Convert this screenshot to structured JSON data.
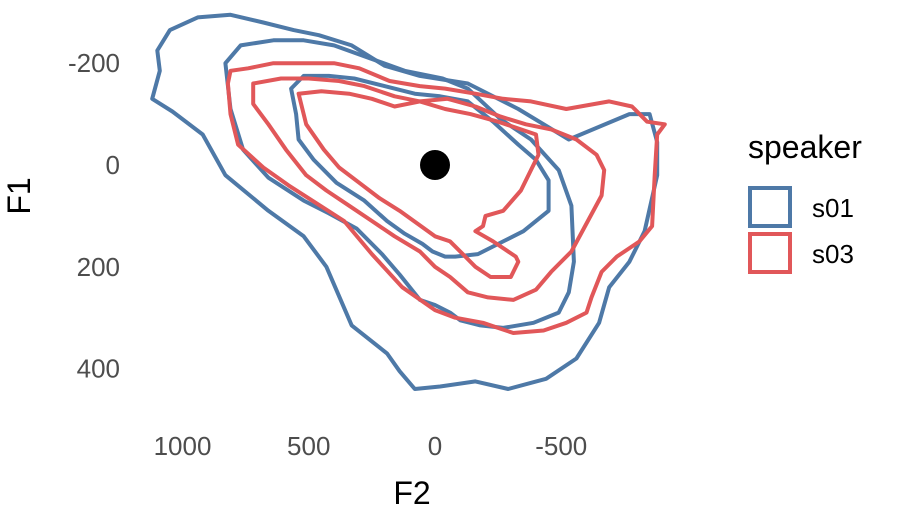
{
  "chart_data": {
    "type": "contour",
    "xlabel": "F2",
    "ylabel": "F1",
    "x_reversed": true,
    "y_reversed": true,
    "xlim": [
      1200,
      -800
    ],
    "ylim": [
      -275,
      455
    ],
    "x_ticks": [
      1000,
      500,
      0,
      -500
    ],
    "x_tick_labels": [
      "1000",
      "500",
      "0",
      "-500"
    ],
    "y_ticks": [
      -200,
      0,
      200,
      400
    ],
    "y_tick_labels": [
      "-200",
      "0",
      "200",
      "400"
    ],
    "grid": false,
    "legend": {
      "title": "speaker",
      "position": "right"
    },
    "point": {
      "x": 0,
      "y": 0,
      "color": "#000000"
    },
    "series": [
      {
        "name": "s01",
        "color": "#4e79a7",
        "contours": [
          [
            [
              1040,
              -105
            ],
            [
              1120,
              -130
            ],
            [
              1090,
              -185
            ],
            [
              1100,
              -225
            ],
            [
              1050,
              -265
            ],
            [
              940,
              -290
            ],
            [
              810,
              -295
            ],
            [
              680,
              -280
            ],
            [
              560,
              -265
            ],
            [
              460,
              -255
            ],
            [
              330,
              -235
            ],
            [
              200,
              -195
            ],
            [
              60,
              -175
            ],
            [
              -130,
              -160
            ],
            [
              -330,
              -110
            ],
            [
              -530,
              -50
            ],
            [
              -770,
              -100
            ],
            [
              -850,
              -100
            ],
            [
              -880,
              -45
            ],
            [
              -880,
              20
            ],
            [
              -830,
              130
            ],
            [
              -770,
              190
            ],
            [
              -690,
              240
            ],
            [
              -650,
              310
            ],
            [
              -560,
              380
            ],
            [
              -440,
              420
            ],
            [
              -290,
              440
            ],
            [
              -160,
              425
            ],
            [
              -20,
              435
            ],
            [
              80,
              440
            ],
            [
              140,
              405
            ],
            [
              190,
              370
            ],
            [
              330,
              315
            ],
            [
              430,
              200
            ],
            [
              520,
              140
            ],
            [
              660,
              90
            ],
            [
              830,
              20
            ],
            [
              920,
              -60
            ],
            [
              1040,
              -105
            ]
          ],
          [
            [
              810,
              -110
            ],
            [
              830,
              -200
            ],
            [
              770,
              -235
            ],
            [
              640,
              -245
            ],
            [
              520,
              -245
            ],
            [
              400,
              -235
            ],
            [
              260,
              -210
            ],
            [
              120,
              -185
            ],
            [
              -30,
              -170
            ],
            [
              -130,
              -150
            ],
            [
              -260,
              -90
            ],
            [
              -380,
              -50
            ],
            [
              -490,
              10
            ],
            [
              -540,
              80
            ],
            [
              -550,
              190
            ],
            [
              -530,
              250
            ],
            [
              -490,
              290
            ],
            [
              -390,
              310
            ],
            [
              -270,
              320
            ],
            [
              -180,
              315
            ],
            [
              -100,
              305
            ],
            [
              -60,
              290
            ],
            [
              0,
              275
            ],
            [
              60,
              265
            ],
            [
              140,
              215
            ],
            [
              210,
              175
            ],
            [
              310,
              125
            ],
            [
              420,
              95
            ],
            [
              520,
              70
            ],
            [
              660,
              25
            ],
            [
              760,
              -30
            ],
            [
              810,
              -110
            ]
          ],
          [
            [
              550,
              -100
            ],
            [
              570,
              -150
            ],
            [
              520,
              -175
            ],
            [
              420,
              -175
            ],
            [
              320,
              -170
            ],
            [
              200,
              -155
            ],
            [
              80,
              -140
            ],
            [
              -20,
              -135
            ],
            [
              -130,
              -125
            ],
            [
              -230,
              -85
            ],
            [
              -330,
              -40
            ],
            [
              -400,
              -10
            ],
            [
              -450,
              30
            ],
            [
              -450,
              90
            ],
            [
              -350,
              130
            ],
            [
              -270,
              150
            ],
            [
              -170,
              175
            ],
            [
              -80,
              180
            ],
            [
              -40,
              180
            ],
            [
              10,
              170
            ],
            [
              50,
              155
            ],
            [
              120,
              135
            ],
            [
              190,
              110
            ],
            [
              280,
              70
            ],
            [
              390,
              35
            ],
            [
              480,
              -10
            ],
            [
              540,
              -50
            ],
            [
              550,
              -100
            ]
          ]
        ]
      },
      {
        "name": "s03",
        "color": "#e15759",
        "contours": [
          [
            [
              820,
              -160
            ],
            [
              810,
              -185
            ],
            [
              740,
              -190
            ],
            [
              640,
              -200
            ],
            [
              520,
              -200
            ],
            [
              400,
              -200
            ],
            [
              300,
              -190
            ],
            [
              180,
              -165
            ],
            [
              60,
              -155
            ],
            [
              -40,
              -150
            ],
            [
              -160,
              -140
            ],
            [
              -270,
              -130
            ],
            [
              -380,
              -125
            ],
            [
              -520,
              -110
            ],
            [
              -690,
              -125
            ],
            [
              -780,
              -115
            ],
            [
              -840,
              -85
            ],
            [
              -910,
              -80
            ],
            [
              -880,
              -60
            ],
            [
              -870,
              20
            ],
            [
              -860,
              120
            ],
            [
              -810,
              150
            ],
            [
              -720,
              180
            ],
            [
              -660,
              210
            ],
            [
              -620,
              260
            ],
            [
              -600,
              290
            ],
            [
              -520,
              310
            ],
            [
              -430,
              325
            ],
            [
              -310,
              330
            ],
            [
              -190,
              310
            ],
            [
              -80,
              300
            ],
            [
              0,
              285
            ],
            [
              130,
              240
            ],
            [
              250,
              175
            ],
            [
              360,
              110
            ],
            [
              470,
              75
            ],
            [
              580,
              40
            ],
            [
              680,
              5
            ],
            [
              780,
              -40
            ],
            [
              810,
              -100
            ],
            [
              820,
              -160
            ]
          ],
          [
            [
              720,
              -160
            ],
            [
              610,
              -170
            ],
            [
              500,
              -170
            ],
            [
              380,
              -165
            ],
            [
              280,
              -155
            ],
            [
              160,
              -135
            ],
            [
              60,
              -125
            ],
            [
              -50,
              -130
            ],
            [
              -160,
              -115
            ],
            [
              -260,
              -95
            ],
            [
              -360,
              -80
            ],
            [
              -460,
              -70
            ],
            [
              -560,
              -50
            ],
            [
              -640,
              -20
            ],
            [
              -670,
              10
            ],
            [
              -660,
              60
            ],
            [
              -600,
              115
            ],
            [
              -540,
              170
            ],
            [
              -460,
              210
            ],
            [
              -400,
              245
            ],
            [
              -310,
              265
            ],
            [
              -210,
              260
            ],
            [
              -130,
              250
            ],
            [
              -60,
              220
            ],
            [
              0,
              200
            ],
            [
              60,
              170
            ],
            [
              160,
              140
            ],
            [
              250,
              110
            ],
            [
              340,
              80
            ],
            [
              430,
              50
            ],
            [
              510,
              20
            ],
            [
              590,
              -30
            ],
            [
              660,
              -80
            ],
            [
              720,
              -120
            ],
            [
              720,
              -160
            ]
          ],
          [
            [
              540,
              -140
            ],
            [
              450,
              -145
            ],
            [
              340,
              -140
            ],
            [
              250,
              -130
            ],
            [
              160,
              -115
            ],
            [
              60,
              -125
            ],
            [
              -40,
              -110
            ],
            [
              -140,
              -100
            ],
            [
              -250,
              -85
            ],
            [
              -340,
              -70
            ],
            [
              -400,
              -60
            ],
            [
              -410,
              -20
            ],
            [
              -340,
              50
            ],
            [
              -270,
              90
            ],
            [
              -200,
              100
            ],
            [
              -190,
              120
            ],
            [
              -160,
              130
            ],
            [
              -230,
              150
            ],
            [
              -320,
              180
            ],
            [
              -330,
              190
            ],
            [
              -300,
              220
            ],
            [
              -220,
              220
            ],
            [
              -160,
              200
            ],
            [
              -120,
              180
            ],
            [
              -60,
              150
            ],
            [
              0,
              140
            ],
            [
              70,
              115
            ],
            [
              140,
              90
            ],
            [
              220,
              65
            ],
            [
              300,
              35
            ],
            [
              380,
              5
            ],
            [
              440,
              -30
            ],
            [
              510,
              -80
            ],
            [
              540,
              -140
            ]
          ]
        ]
      }
    ]
  }
}
